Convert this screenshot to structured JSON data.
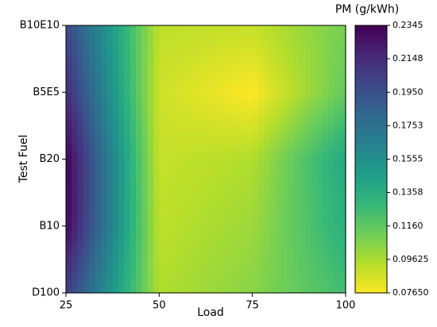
{
  "chart_data": {
    "type": "contour",
    "x_label": "Load",
    "y_label": "Test Fuel",
    "colorbar_label": "PM (g/kWh)",
    "x": [
      25,
      50,
      75,
      100
    ],
    "categories": [
      "D100",
      "B10",
      "B20",
      "B5E5",
      "B10E10"
    ],
    "z": [
      [
        0.205,
        0.095,
        0.105,
        0.125
      ],
      [
        0.232,
        0.092,
        0.1,
        0.135
      ],
      [
        0.2345,
        0.09,
        0.095,
        0.14
      ],
      [
        0.215,
        0.088,
        0.0765,
        0.115
      ],
      [
        0.2,
        0.092,
        0.09,
        0.11
      ]
    ],
    "xlim": [
      25,
      100
    ],
    "xticks": [
      25,
      50,
      75,
      100
    ],
    "colormap": "viridis_r",
    "zlim": [
      0.0765,
      0.2345
    ],
    "zticks": [
      {
        "value": 0.0765,
        "label": "0.07650"
      },
      {
        "value": 0.09625,
        "label": "0.09625"
      },
      {
        "value": 0.116,
        "label": "0.1160"
      },
      0.1358,
      0.1555,
      0.1753,
      {
        "value": 0.195,
        "label": "0.1950"
      },
      0.2148,
      0.2345
    ]
  }
}
